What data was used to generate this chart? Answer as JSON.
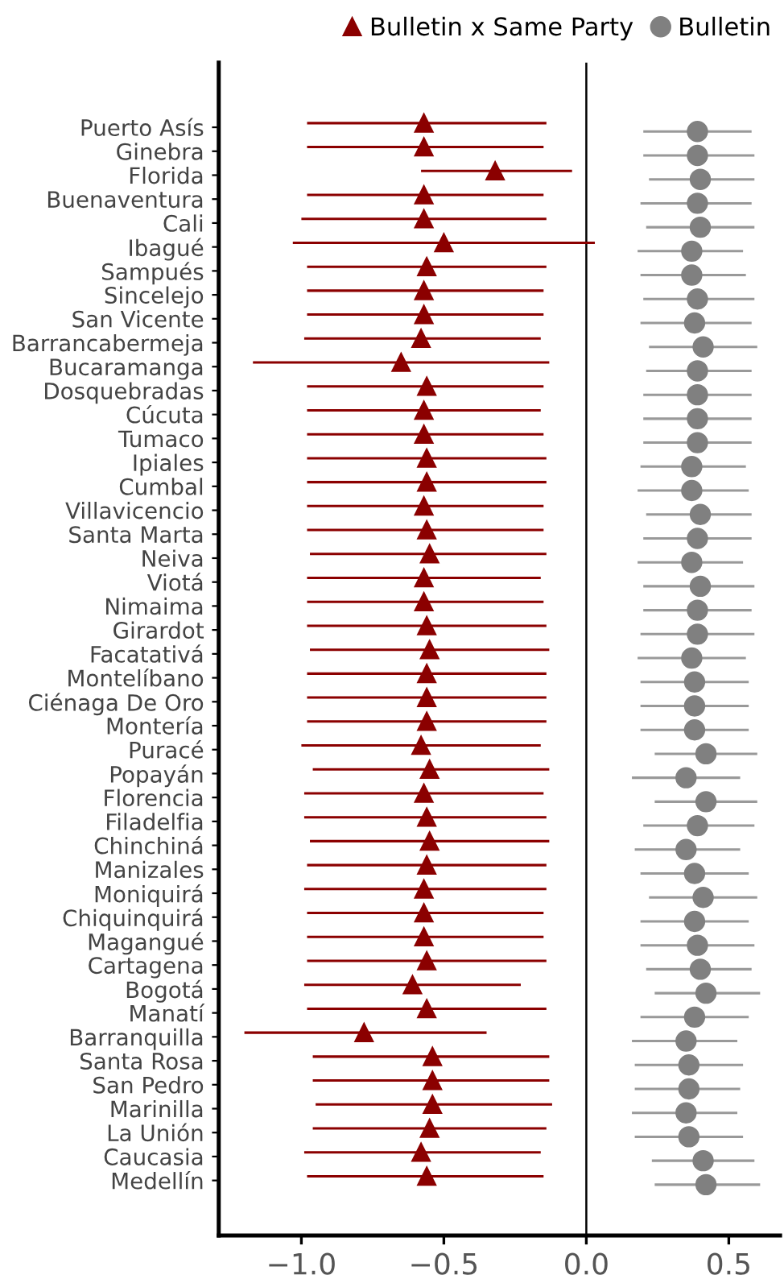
{
  "chart_data": {
    "type": "scatter",
    "orientation": "horizontal",
    "categories": [
      "Puerto Asís",
      "Ginebra",
      "Florida",
      "Buenaventura",
      "Cali",
      "Ibagué",
      "Sampués",
      "Sincelejo",
      "San Vicente",
      "Barrancabermeja",
      "Bucaramanga",
      "Dosquebradas",
      "Cúcuta",
      "Tumaco",
      "Ipiales",
      "Cumbal",
      "Villavicencio",
      "Santa Marta",
      "Neiva",
      "Viotá",
      "Nimaima",
      "Girardot",
      "Facatativá",
      "Montelíbano",
      "Ciénaga De Oro",
      "Montería",
      "Puracé",
      "Popayán",
      "Florencia",
      "Filadelfia",
      "Chinchiná",
      "Manizales",
      "Moniquirá",
      "Chiquinquirá",
      "Magangué",
      "Cartagena",
      "Bogotá",
      "Manatí",
      "Barranquilla",
      "Santa Rosa",
      "San Pedro",
      "Marinilla",
      "La Unión",
      "Caucasia",
      "Medellín"
    ],
    "series": [
      {
        "name": "Bulletin x Same Party",
        "color": "#8b0000",
        "marker": "triangle",
        "values": [
          -0.57,
          -0.57,
          -0.32,
          -0.57,
          -0.57,
          -0.5,
          -0.56,
          -0.57,
          -0.57,
          -0.58,
          -0.65,
          -0.56,
          -0.57,
          -0.57,
          -0.56,
          -0.56,
          -0.57,
          -0.56,
          -0.55,
          -0.57,
          -0.57,
          -0.56,
          -0.55,
          -0.56,
          -0.56,
          -0.56,
          -0.58,
          -0.55,
          -0.57,
          -0.56,
          -0.55,
          -0.56,
          -0.57,
          -0.57,
          -0.57,
          -0.56,
          -0.61,
          -0.56,
          -0.78,
          -0.54,
          -0.54,
          -0.54,
          -0.55,
          -0.58,
          -0.56
        ],
        "errors": [
          [
            -0.98,
            -0.14
          ],
          [
            -0.98,
            -0.15
          ],
          [
            -0.58,
            -0.05
          ],
          [
            -0.98,
            -0.15
          ],
          [
            -1.0,
            -0.14
          ],
          [
            -1.03,
            0.03
          ],
          [
            -0.98,
            -0.14
          ],
          [
            -0.98,
            -0.15
          ],
          [
            -0.98,
            -0.15
          ],
          [
            -0.99,
            -0.16
          ],
          [
            -1.17,
            -0.13
          ],
          [
            -0.98,
            -0.15
          ],
          [
            -0.98,
            -0.16
          ],
          [
            -0.98,
            -0.15
          ],
          [
            -0.98,
            -0.14
          ],
          [
            -0.98,
            -0.14
          ],
          [
            -0.98,
            -0.15
          ],
          [
            -0.98,
            -0.15
          ],
          [
            -0.97,
            -0.14
          ],
          [
            -0.98,
            -0.16
          ],
          [
            -0.98,
            -0.15
          ],
          [
            -0.98,
            -0.14
          ],
          [
            -0.97,
            -0.13
          ],
          [
            -0.98,
            -0.14
          ],
          [
            -0.98,
            -0.14
          ],
          [
            -0.98,
            -0.14
          ],
          [
            -1.0,
            -0.16
          ],
          [
            -0.96,
            -0.13
          ],
          [
            -0.99,
            -0.15
          ],
          [
            -0.99,
            -0.14
          ],
          [
            -0.97,
            -0.13
          ],
          [
            -0.98,
            -0.14
          ],
          [
            -0.99,
            -0.14
          ],
          [
            -0.98,
            -0.15
          ],
          [
            -0.98,
            -0.15
          ],
          [
            -0.98,
            -0.14
          ],
          [
            -0.99,
            -0.23
          ],
          [
            -0.98,
            -0.14
          ],
          [
            -1.2,
            -0.35
          ],
          [
            -0.96,
            -0.13
          ],
          [
            -0.96,
            -0.13
          ],
          [
            -0.95,
            -0.12
          ],
          [
            -0.96,
            -0.14
          ],
          [
            -0.99,
            -0.16
          ],
          [
            -0.98,
            -0.15
          ]
        ]
      },
      {
        "name": "Bulletin",
        "color": "#808080",
        "marker": "circle",
        "values": [
          0.39,
          0.39,
          0.4,
          0.39,
          0.4,
          0.37,
          0.37,
          0.39,
          0.38,
          0.41,
          0.39,
          0.39,
          0.39,
          0.39,
          0.37,
          0.37,
          0.4,
          0.39,
          0.37,
          0.4,
          0.39,
          0.39,
          0.37,
          0.38,
          0.38,
          0.38,
          0.42,
          0.35,
          0.42,
          0.39,
          0.35,
          0.38,
          0.41,
          0.38,
          0.39,
          0.4,
          0.42,
          0.38,
          0.35,
          0.36,
          0.36,
          0.35,
          0.36,
          0.41,
          0.42
        ],
        "errors": [
          [
            0.2,
            0.58
          ],
          [
            0.2,
            0.59
          ],
          [
            0.22,
            0.59
          ],
          [
            0.19,
            0.58
          ],
          [
            0.21,
            0.59
          ],
          [
            0.18,
            0.55
          ],
          [
            0.19,
            0.56
          ],
          [
            0.2,
            0.59
          ],
          [
            0.19,
            0.58
          ],
          [
            0.22,
            0.6
          ],
          [
            0.21,
            0.58
          ],
          [
            0.2,
            0.58
          ],
          [
            0.2,
            0.58
          ],
          [
            0.2,
            0.58
          ],
          [
            0.19,
            0.56
          ],
          [
            0.18,
            0.57
          ],
          [
            0.21,
            0.58
          ],
          [
            0.2,
            0.58
          ],
          [
            0.18,
            0.55
          ],
          [
            0.2,
            0.59
          ],
          [
            0.2,
            0.58
          ],
          [
            0.19,
            0.59
          ],
          [
            0.18,
            0.56
          ],
          [
            0.19,
            0.57
          ],
          [
            0.19,
            0.57
          ],
          [
            0.19,
            0.57
          ],
          [
            0.24,
            0.6
          ],
          [
            0.16,
            0.54
          ],
          [
            0.24,
            0.6
          ],
          [
            0.2,
            0.59
          ],
          [
            0.17,
            0.54
          ],
          [
            0.19,
            0.57
          ],
          [
            0.22,
            0.6
          ],
          [
            0.19,
            0.57
          ],
          [
            0.19,
            0.59
          ],
          [
            0.21,
            0.58
          ],
          [
            0.24,
            0.61
          ],
          [
            0.19,
            0.57
          ],
          [
            0.16,
            0.53
          ],
          [
            0.17,
            0.55
          ],
          [
            0.17,
            0.54
          ],
          [
            0.16,
            0.53
          ],
          [
            0.17,
            0.55
          ],
          [
            0.23,
            0.59
          ],
          [
            0.24,
            0.61
          ]
        ]
      }
    ],
    "xlim": [
      -1.29,
      0.68
    ],
    "xticks": [
      {
        "value": -1.0,
        "label": "−1.0"
      },
      {
        "value": -0.5,
        "label": "−0.5"
      },
      {
        "value": 0.0,
        "label": "0.0"
      },
      {
        "value": 0.5,
        "label": "0.5"
      }
    ],
    "ref_lines": [
      {
        "axis": "x",
        "value": 0,
        "color": "#000000"
      }
    ],
    "grid": false,
    "legend": "top"
  }
}
